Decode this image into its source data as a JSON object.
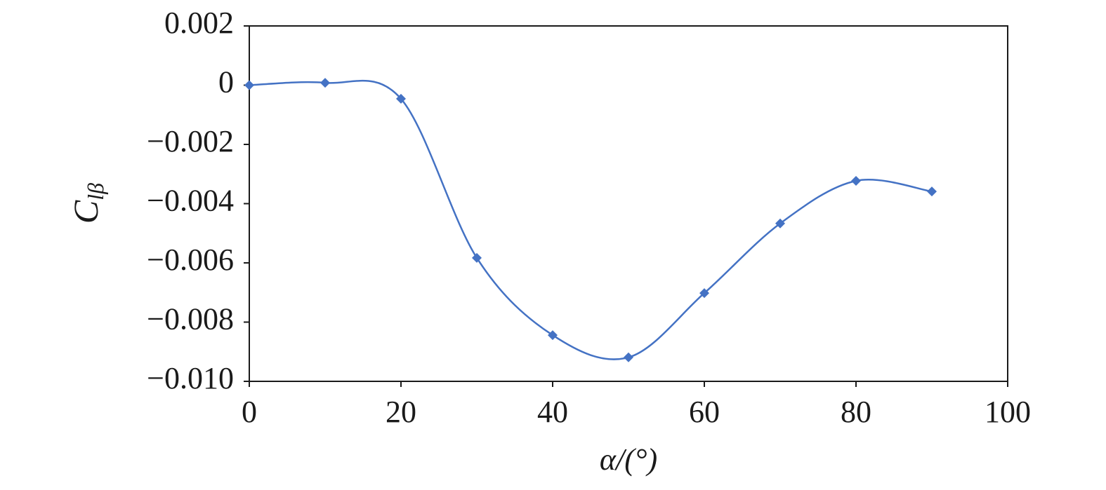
{
  "chart_data": {
    "type": "line",
    "x": [
      0,
      10,
      20,
      30,
      40,
      50,
      60,
      70,
      80,
      90
    ],
    "series": [
      {
        "color": "#4472c4",
        "values": [
          0,
          8e-05,
          -0.00046,
          -0.00583,
          -0.00844,
          -0.00919,
          -0.00702,
          -0.00467,
          -0.00323,
          -0.00359
        ]
      }
    ],
    "xlim": [
      0,
      100
    ],
    "xticks": [
      0,
      20,
      40,
      60,
      80,
      100
    ],
    "ylim": [
      -0.01,
      0.002
    ],
    "yticks": [
      0.002,
      0,
      {
        "value": -0.002,
        "label": "−0.002"
      },
      {
        "value": -0.004,
        "label": "−0.004"
      },
      {
        "value": -0.006,
        "label": "−0.006"
      },
      {
        "value": -0.008,
        "label": "−0.008"
      },
      {
        "value": -0.01,
        "label": "−0.010"
      }
    ],
    "xlabel": "α/(°)",
    "ylabel": {
      "main": "C",
      "sub": "lβ"
    },
    "smooth": true
  }
}
